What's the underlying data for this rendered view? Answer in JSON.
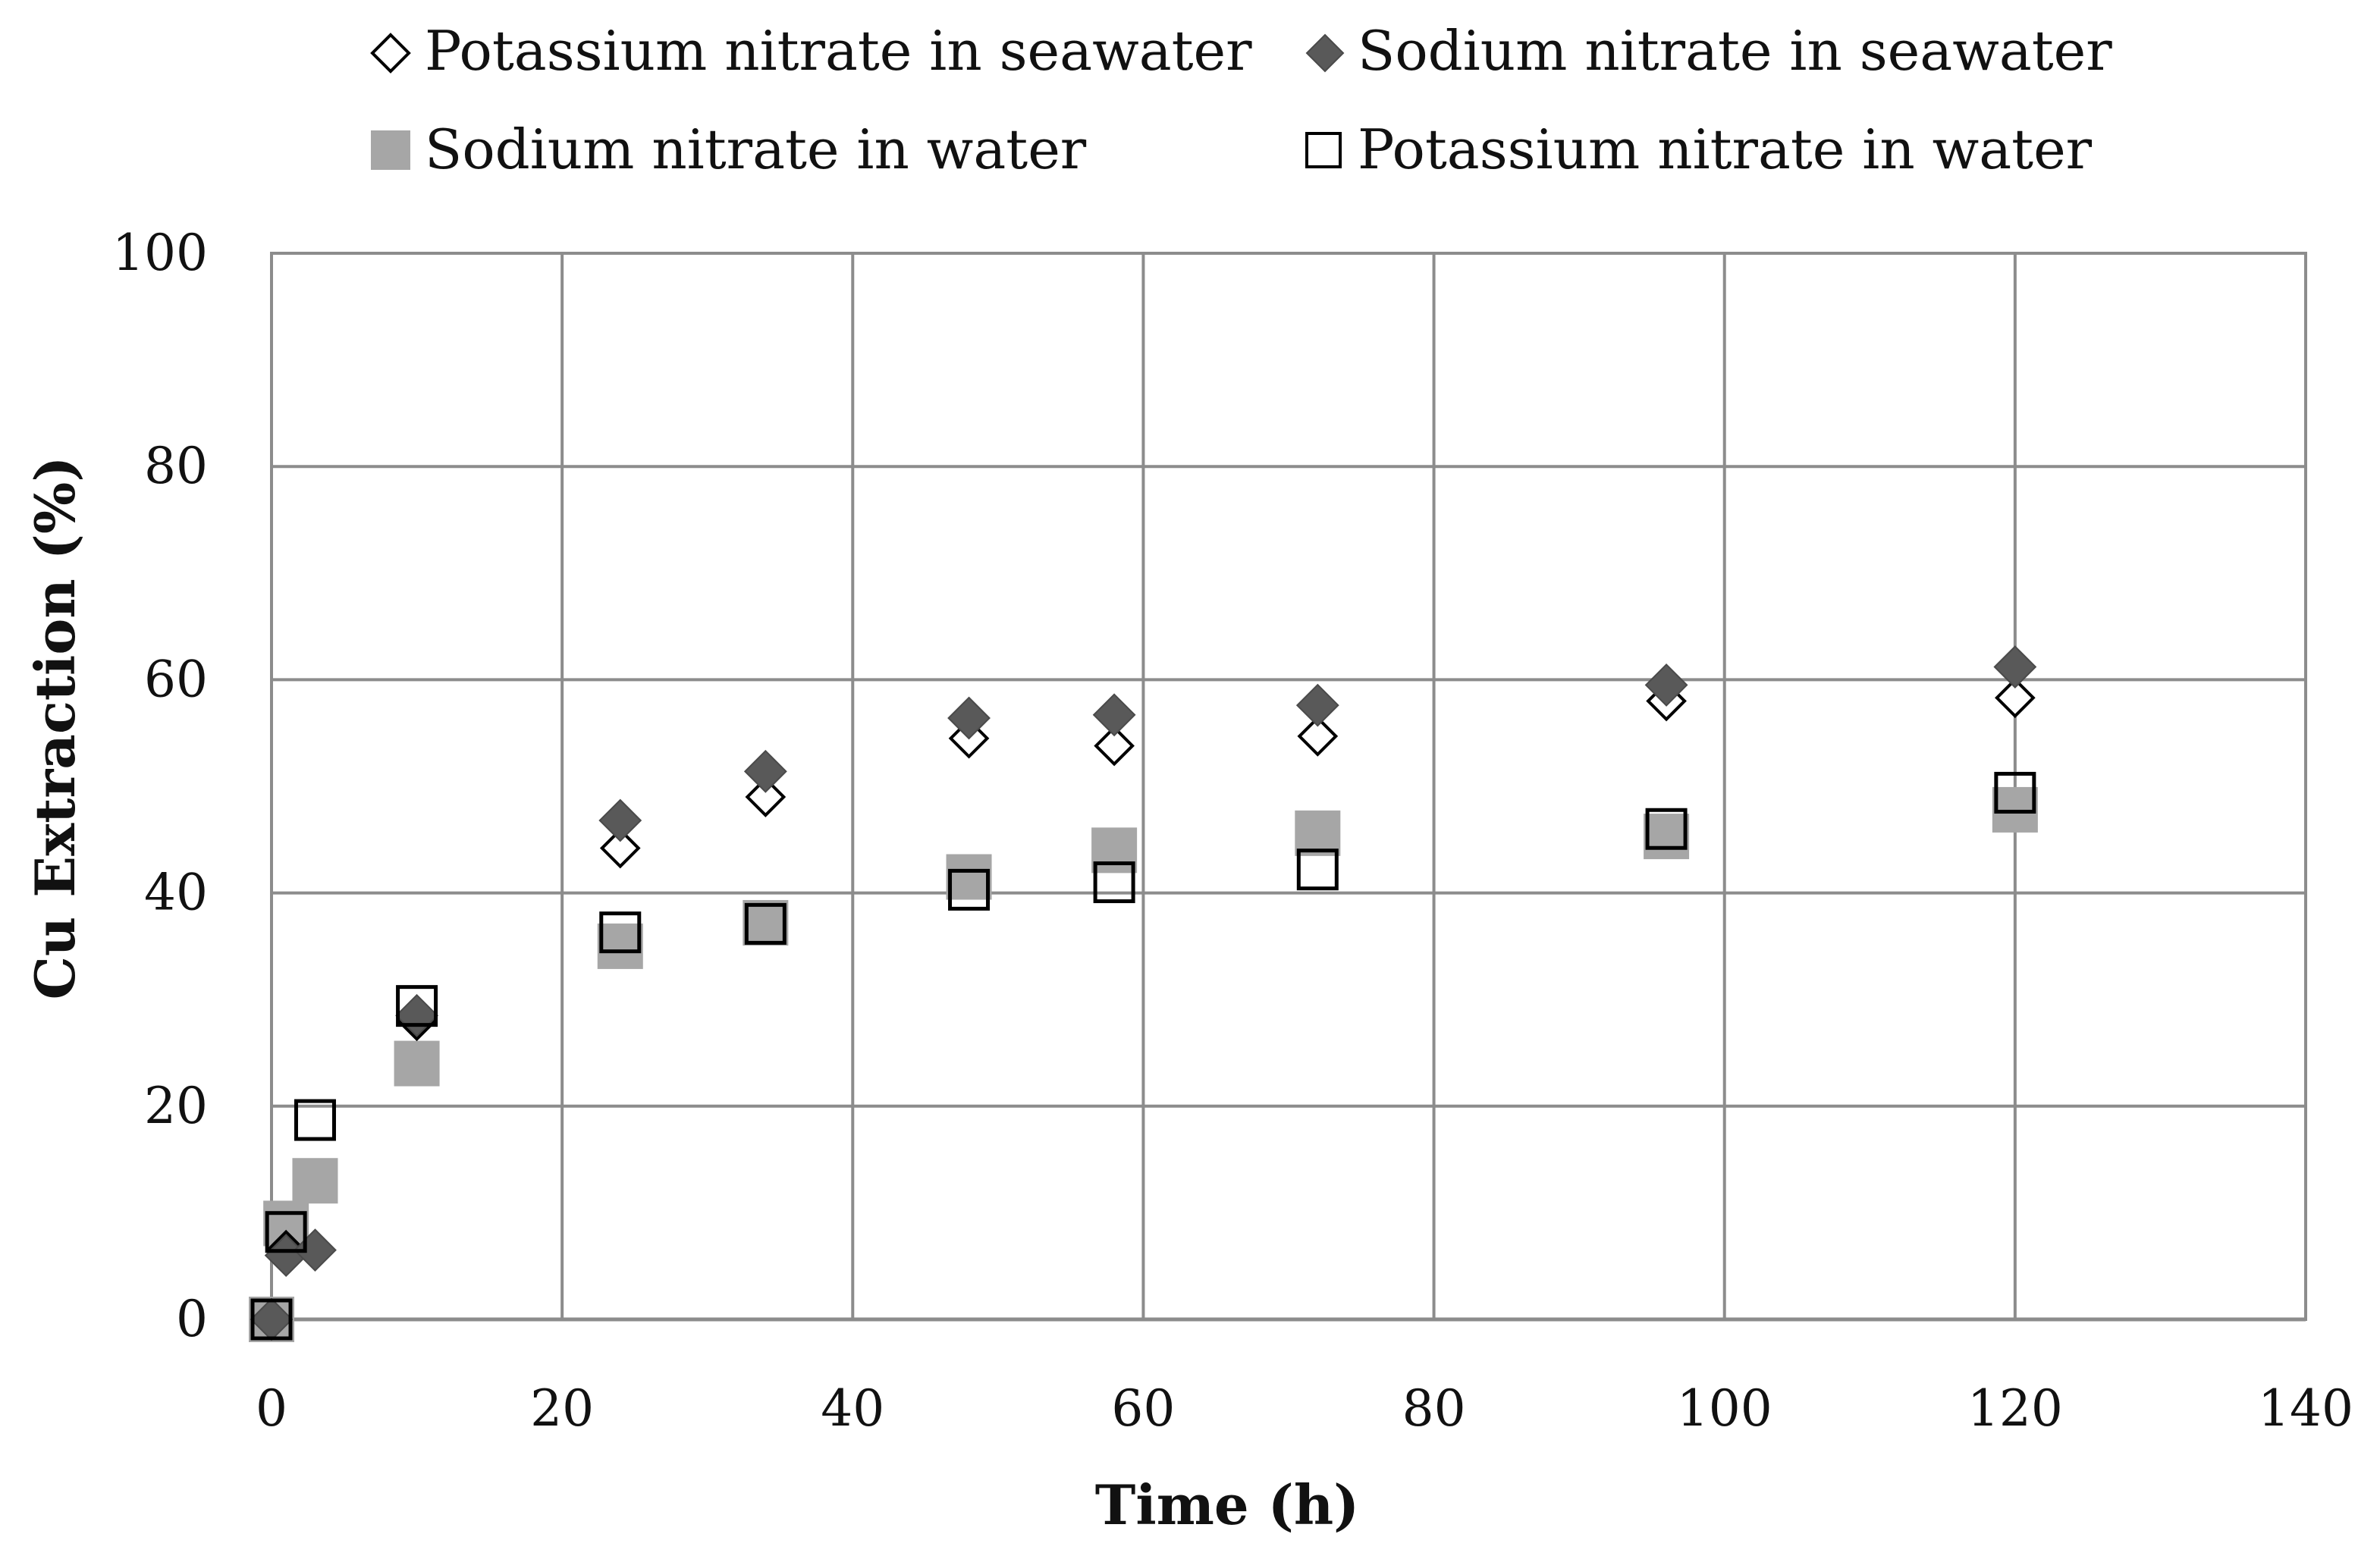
{
  "chart_data": {
    "type": "scatter",
    "title": "",
    "xlabel": "Time  (h)",
    "ylabel": "Cu Extraction (%)",
    "xlim": [
      0,
      140
    ],
    "ylim": [
      0,
      100
    ],
    "xticks": [
      0,
      20,
      40,
      60,
      80,
      100,
      120,
      140
    ],
    "yticks": [
      0,
      20,
      40,
      60,
      80,
      100
    ],
    "xtick_labels": [
      "0",
      "20",
      "40",
      "60",
      "80",
      "100",
      "120",
      "140"
    ],
    "ytick_labels": [
      "0",
      "20",
      "40",
      "60",
      "80",
      "100"
    ],
    "grid": true,
    "legend_position": "top",
    "series": [
      {
        "name": "Potassium nitrate in seawater",
        "marker": "diamond-open",
        "color": "#000000",
        "x": [
          0,
          1,
          3,
          10,
          24,
          34,
          48,
          58,
          72,
          96,
          120
        ],
        "y": [
          0,
          6.5,
          6.5,
          28,
          44.2,
          49,
          54.5,
          53.8,
          54.7,
          58,
          58.3
        ]
      },
      {
        "name": "Sodium nitrate in seawater",
        "marker": "diamond-filled",
        "color": "#595959",
        "x": [
          0,
          1,
          3,
          10,
          24,
          34,
          48,
          58,
          72,
          96,
          120
        ],
        "y": [
          0,
          6,
          6.5,
          28.5,
          46.8,
          51.4,
          56.4,
          56.7,
          57.6,
          59.5,
          61.2
        ]
      },
      {
        "name": "Sodium nitrate in water",
        "marker": "square-filled",
        "color": "#a6a6a6",
        "x": [
          0,
          1,
          3,
          10,
          24,
          34,
          48,
          58,
          72,
          96,
          120
        ],
        "y": [
          0,
          9,
          13,
          24,
          35,
          37.2,
          41.5,
          44,
          45.6,
          45.3,
          47.8
        ]
      },
      {
        "name": "Potassium nitrate in water",
        "marker": "square-open",
        "color": "#000000",
        "x": [
          0,
          1,
          3,
          10,
          24,
          34,
          48,
          58,
          72,
          96,
          120
        ],
        "y": [
          0,
          8.2,
          18.7,
          29.4,
          36.3,
          37.1,
          40.3,
          41,
          42.2,
          46,
          49.4
        ]
      }
    ]
  }
}
